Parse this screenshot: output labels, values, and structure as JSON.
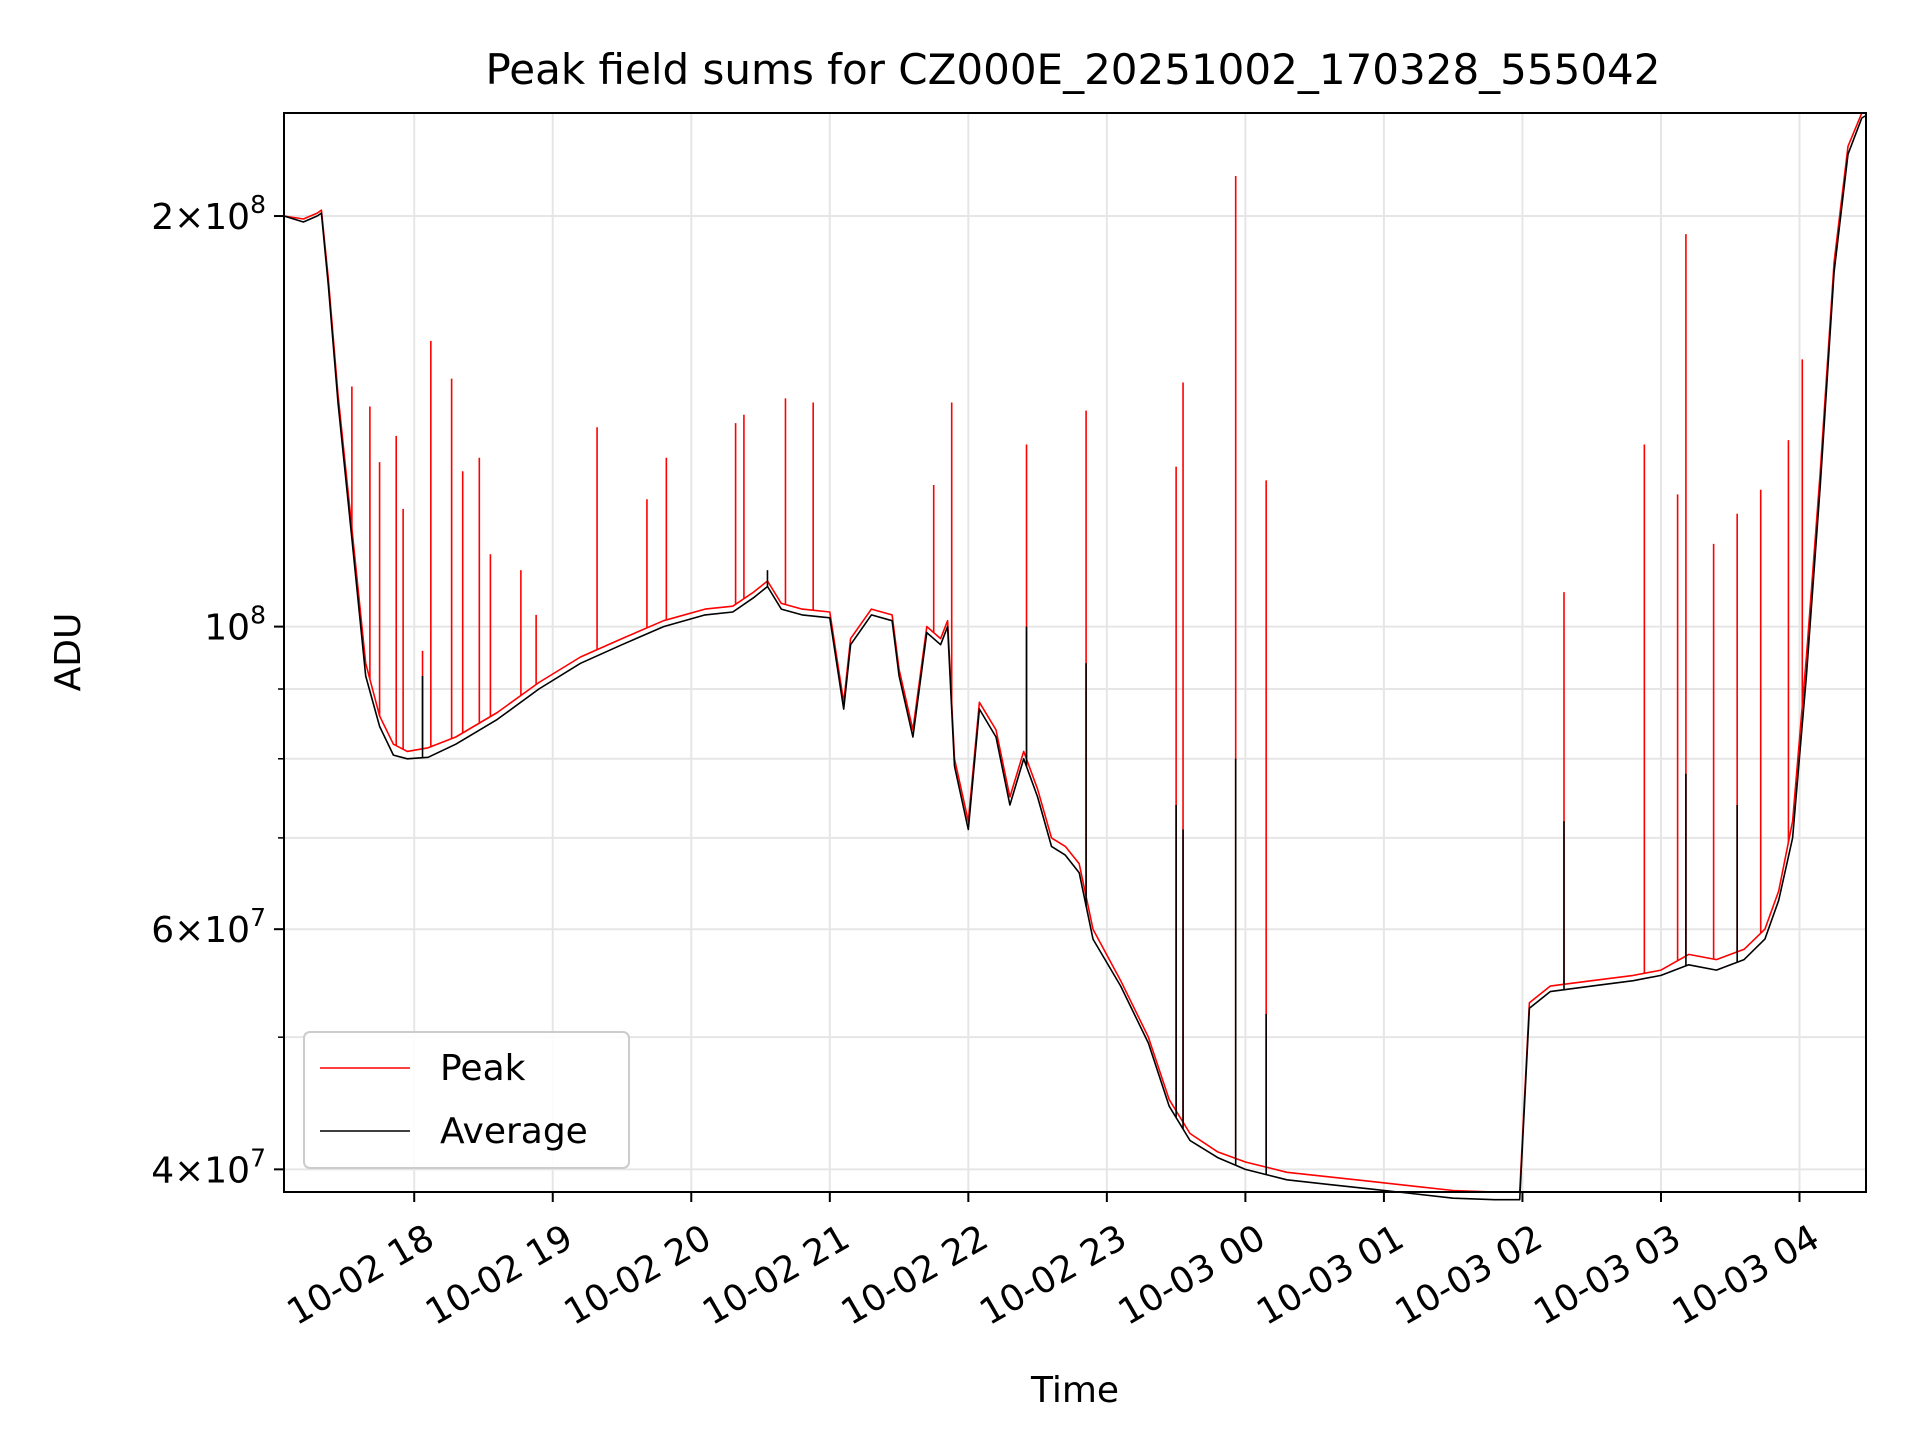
{
  "chart_data": {
    "type": "line",
    "title": "Peak field sums for CZ000E_20251002_170328_555042",
    "xlabel": "Time",
    "ylabel": "ADU",
    "yscale": "log",
    "ylim": [
      38500000,
      238000000
    ],
    "xlim": [
      17.06,
      28.48
    ],
    "grid": true,
    "legend_position": "lower-left",
    "x_ticks": [
      {
        "value": 18,
        "label": "10-02 18"
      },
      {
        "value": 19,
        "label": "10-02 19"
      },
      {
        "value": 20,
        "label": "10-02 20"
      },
      {
        "value": 21,
        "label": "10-02 21"
      },
      {
        "value": 22,
        "label": "10-02 22"
      },
      {
        "value": 23,
        "label": "10-02 23"
      },
      {
        "value": 24,
        "label": "10-03 00"
      },
      {
        "value": 25,
        "label": "10-03 01"
      },
      {
        "value": 26,
        "label": "10-03 02"
      },
      {
        "value": 27,
        "label": "10-03 03"
      },
      {
        "value": 28,
        "label": "10-03 04"
      }
    ],
    "y_major_ticks": [
      {
        "value": 40000000,
        "mantissa": "4",
        "exp": "7"
      },
      {
        "value": 60000000,
        "mantissa": "6",
        "exp": "7"
      },
      {
        "value": 100000000,
        "mantissa": "",
        "exp": "8"
      },
      {
        "value": 200000000,
        "mantissa": "2",
        "exp": "8"
      }
    ],
    "y_minor_ticks": [
      50000000,
      70000000,
      80000000,
      90000000
    ],
    "series": [
      {
        "name": "Peak",
        "color": "#ff0000",
        "points": [
          [
            17.06,
            200000000
          ],
          [
            17.2,
            199000000
          ],
          [
            17.3,
            201000000
          ],
          [
            17.33,
            202000000
          ],
          [
            17.38,
            180000000
          ],
          [
            17.45,
            148000000
          ],
          [
            17.55,
            118000000
          ],
          [
            17.65,
            94000000
          ],
          [
            17.75,
            86000000
          ],
          [
            17.85,
            82000000
          ],
          [
            17.95,
            81000000
          ],
          [
            18.1,
            81500000
          ],
          [
            18.3,
            83000000
          ],
          [
            18.6,
            86500000
          ],
          [
            18.9,
            91000000
          ],
          [
            19.2,
            95000000
          ],
          [
            19.5,
            98000000
          ],
          [
            19.8,
            101000000
          ],
          [
            20.1,
            103000000
          ],
          [
            20.3,
            103500000
          ],
          [
            20.45,
            106000000
          ],
          [
            20.55,
            108000000
          ],
          [
            20.65,
            104000000
          ],
          [
            20.8,
            103000000
          ],
          [
            21.0,
            102500000
          ],
          [
            21.05,
            95000000
          ],
          [
            21.1,
            88000000
          ],
          [
            21.15,
            98000000
          ],
          [
            21.3,
            103000000
          ],
          [
            21.45,
            102000000
          ],
          [
            21.5,
            93000000
          ],
          [
            21.6,
            84000000
          ],
          [
            21.7,
            100000000
          ],
          [
            21.8,
            98000000
          ],
          [
            21.85,
            101000000
          ],
          [
            21.9,
            80000000
          ],
          [
            22.0,
            72000000
          ],
          [
            22.08,
            88000000
          ],
          [
            22.2,
            84000000
          ],
          [
            22.3,
            75000000
          ],
          [
            22.4,
            81000000
          ],
          [
            22.5,
            76000000
          ],
          [
            22.6,
            70000000
          ],
          [
            22.7,
            69000000
          ],
          [
            22.8,
            67000000
          ],
          [
            22.9,
            60000000
          ],
          [
            23.1,
            55000000
          ],
          [
            23.3,
            50000000
          ],
          [
            23.45,
            45000000
          ],
          [
            23.6,
            42500000
          ],
          [
            23.8,
            41200000
          ],
          [
            24.0,
            40500000
          ],
          [
            24.3,
            39800000
          ],
          [
            24.6,
            39500000
          ],
          [
            24.9,
            39200000
          ],
          [
            25.2,
            38900000
          ],
          [
            25.5,
            38600000
          ],
          [
            25.8,
            38500000
          ],
          [
            25.98,
            38500000
          ],
          [
            26.05,
            53000000
          ],
          [
            26.2,
            54500000
          ],
          [
            26.5,
            55000000
          ],
          [
            26.8,
            55500000
          ],
          [
            27.0,
            56000000
          ],
          [
            27.2,
            57500000
          ],
          [
            27.4,
            57000000
          ],
          [
            27.6,
            58000000
          ],
          [
            27.75,
            60000000
          ],
          [
            27.85,
            64000000
          ],
          [
            27.95,
            72000000
          ],
          [
            28.05,
            95000000
          ],
          [
            28.15,
            130000000
          ],
          [
            28.25,
            185000000
          ],
          [
            28.35,
            225000000
          ],
          [
            28.45,
            238000000
          ],
          [
            28.48,
            238000000
          ]
        ],
        "spikes": [
          [
            17.55,
            150000000
          ],
          [
            17.68,
            145000000
          ],
          [
            17.75,
            132000000
          ],
          [
            17.87,
            138000000
          ],
          [
            17.92,
            122000000
          ],
          [
            18.06,
            96000000
          ],
          [
            18.12,
            162000000
          ],
          [
            18.27,
            152000000
          ],
          [
            18.35,
            130000000
          ],
          [
            18.47,
            133000000
          ],
          [
            18.55,
            113000000
          ],
          [
            18.77,
            110000000
          ],
          [
            18.88,
            102000000
          ],
          [
            19.32,
            140000000
          ],
          [
            19.68,
            124000000
          ],
          [
            19.82,
            133000000
          ],
          [
            20.32,
            141000000
          ],
          [
            20.38,
            143000000
          ],
          [
            20.68,
            147000000
          ],
          [
            20.88,
            146000000
          ],
          [
            21.75,
            127000000
          ],
          [
            21.88,
            146000000
          ],
          [
            22.42,
            136000000
          ],
          [
            22.85,
            144000000
          ],
          [
            23.5,
            131000000
          ],
          [
            23.55,
            151000000
          ],
          [
            23.93,
            214000000
          ],
          [
            24.15,
            128000000
          ],
          [
            26.3,
            106000000
          ],
          [
            26.88,
            136000000
          ],
          [
            27.12,
            125000000
          ],
          [
            27.18,
            194000000
          ],
          [
            27.38,
            115000000
          ],
          [
            27.55,
            121000000
          ],
          [
            27.72,
            126000000
          ],
          [
            27.92,
            137000000
          ],
          [
            28.02,
            157000000
          ]
        ]
      },
      {
        "name": "Average",
        "color": "#000000",
        "points": [
          [
            17.06,
            200000000
          ],
          [
            17.2,
            198000000
          ],
          [
            17.3,
            200000000
          ],
          [
            17.33,
            201000000
          ],
          [
            17.38,
            178000000
          ],
          [
            17.45,
            146000000
          ],
          [
            17.55,
            116000000
          ],
          [
            17.65,
            92000000
          ],
          [
            17.75,
            84500000
          ],
          [
            17.85,
            80500000
          ],
          [
            17.95,
            80000000
          ],
          [
            18.1,
            80200000
          ],
          [
            18.3,
            82000000
          ],
          [
            18.6,
            85500000
          ],
          [
            18.9,
            90000000
          ],
          [
            19.2,
            94000000
          ],
          [
            19.5,
            97000000
          ],
          [
            19.8,
            100000000
          ],
          [
            20.1,
            102000000
          ],
          [
            20.3,
            102500000
          ],
          [
            20.45,
            105000000
          ],
          [
            20.55,
            107000000
          ],
          [
            20.65,
            103000000
          ],
          [
            20.8,
            102000000
          ],
          [
            21.0,
            101500000
          ],
          [
            21.05,
            94000000
          ],
          [
            21.1,
            87000000
          ],
          [
            21.15,
            97000000
          ],
          [
            21.3,
            102000000
          ],
          [
            21.45,
            101000000
          ],
          [
            21.5,
            92000000
          ],
          [
            21.6,
            83000000
          ],
          [
            21.7,
            99000000
          ],
          [
            21.8,
            97000000
          ],
          [
            21.85,
            100000000
          ],
          [
            21.9,
            79000000
          ],
          [
            22.0,
            71000000
          ],
          [
            22.08,
            87000000
          ],
          [
            22.2,
            83000000
          ],
          [
            22.3,
            74000000
          ],
          [
            22.4,
            80000000
          ],
          [
            22.5,
            75000000
          ],
          [
            22.6,
            69000000
          ],
          [
            22.7,
            68000000
          ],
          [
            22.8,
            66000000
          ],
          [
            22.9,
            59000000
          ],
          [
            23.1,
            54500000
          ],
          [
            23.3,
            49500000
          ],
          [
            23.45,
            44500000
          ],
          [
            23.6,
            42000000
          ],
          [
            23.8,
            40800000
          ],
          [
            24.0,
            40000000
          ],
          [
            24.3,
            39300000
          ],
          [
            24.6,
            39000000
          ],
          [
            24.9,
            38700000
          ],
          [
            25.2,
            38400000
          ],
          [
            25.5,
            38100000
          ],
          [
            25.8,
            38000000
          ],
          [
            25.98,
            38000000
          ],
          [
            26.05,
            52500000
          ],
          [
            26.2,
            54000000
          ],
          [
            26.5,
            54500000
          ],
          [
            26.8,
            55000000
          ],
          [
            27.0,
            55500000
          ],
          [
            27.2,
            56500000
          ],
          [
            27.4,
            56000000
          ],
          [
            27.6,
            57000000
          ],
          [
            27.75,
            59000000
          ],
          [
            27.85,
            63000000
          ],
          [
            27.95,
            70000000
          ],
          [
            28.05,
            92000000
          ],
          [
            28.15,
            127000000
          ],
          [
            28.25,
            182000000
          ],
          [
            28.35,
            222000000
          ],
          [
            28.45,
            236000000
          ],
          [
            28.48,
            237000000
          ]
        ],
        "spikes": [
          [
            18.06,
            92000000
          ],
          [
            20.55,
            110000000
          ],
          [
            22.42,
            100000000
          ],
          [
            22.85,
            94000000
          ],
          [
            23.5,
            74000000
          ],
          [
            23.55,
            71000000
          ],
          [
            23.93,
            80000000
          ],
          [
            24.15,
            52000000
          ],
          [
            26.3,
            72000000
          ],
          [
            27.18,
            78000000
          ],
          [
            27.55,
            74000000
          ]
        ]
      }
    ]
  }
}
